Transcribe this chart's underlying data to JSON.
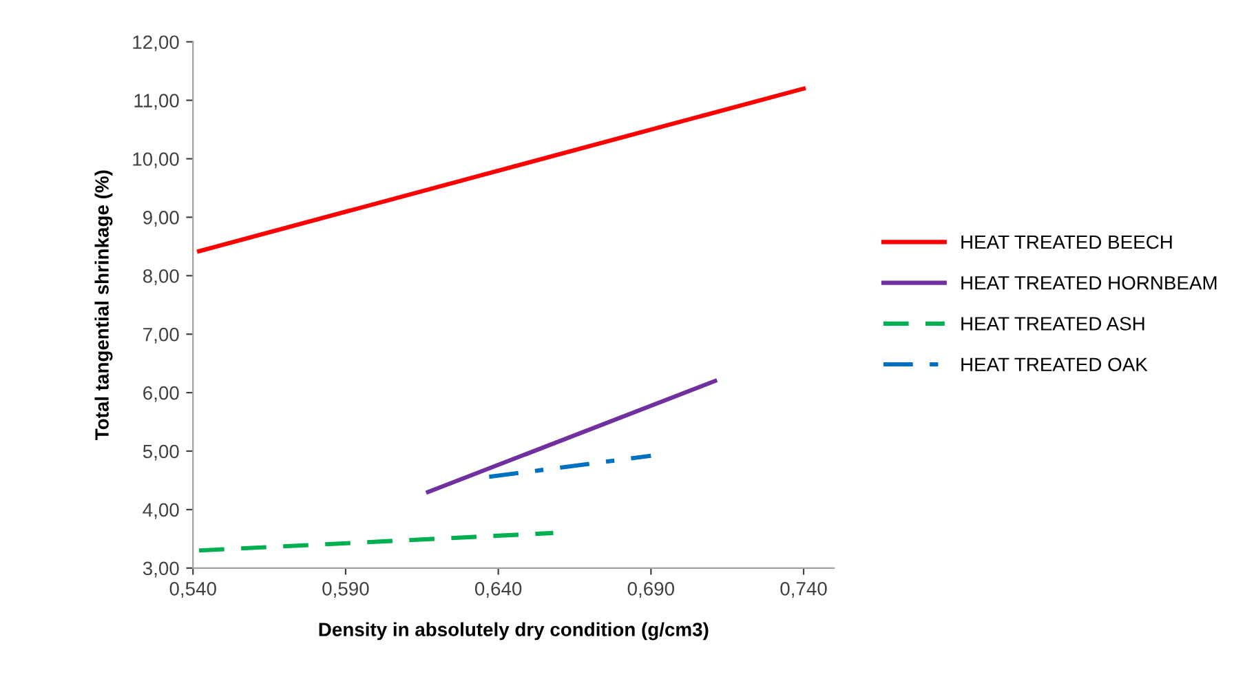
{
  "chart_data": {
    "type": "line",
    "xlabel": "Density in absolutely dry condition (g/cm3)",
    "ylabel": "Total tangential shrinkage (%)",
    "xlim": [
      0.54,
      0.75
    ],
    "ylim": [
      3,
      12
    ],
    "xticks": [
      {
        "value": 0.54,
        "label": "0,540"
      },
      {
        "value": 0.59,
        "label": "0,590"
      },
      {
        "value": 0.64,
        "label": "0,640"
      },
      {
        "value": 0.69,
        "label": "0,690"
      },
      {
        "value": 0.74,
        "label": "0,740"
      }
    ],
    "yticks": [
      {
        "value": 3,
        "label": "3,00"
      },
      {
        "value": 4,
        "label": "4,00"
      },
      {
        "value": 5,
        "label": "5,00"
      },
      {
        "value": 6,
        "label": "6,00"
      },
      {
        "value": 7,
        "label": "7,00"
      },
      {
        "value": 8,
        "label": "8,00"
      },
      {
        "value": 9,
        "label": "9,00"
      },
      {
        "value": 10,
        "label": "10,00"
      },
      {
        "value": 11,
        "label": "11,00"
      },
      {
        "value": 12,
        "label": "12,00"
      }
    ],
    "grid": false,
    "legend": "right",
    "marker": "none",
    "series": [
      {
        "name": "HEAT TREATED BEECH",
        "color": "#ff0000",
        "line_style": "solid",
        "x": [
          0.542,
          0.74
        ],
        "values": [
          8.42,
          11.2
        ]
      },
      {
        "name": "HEAT TREATED HORNBEAM",
        "color": "#7030a0",
        "line_style": "solid",
        "x": [
          0.617,
          0.711
        ],
        "values": [
          4.3,
          6.2
        ]
      },
      {
        "name": "HEAT TREATED ASH",
        "color": "#00b050",
        "line_style": "dashed",
        "x": [
          0.542,
          0.658
        ],
        "values": [
          3.3,
          3.6
        ]
      },
      {
        "name": "HEAT TREATED OAK",
        "color": "#0070c0",
        "line_style": "dashdot",
        "x": [
          0.637,
          0.69
        ],
        "values": [
          4.56,
          4.92
        ]
      }
    ]
  }
}
